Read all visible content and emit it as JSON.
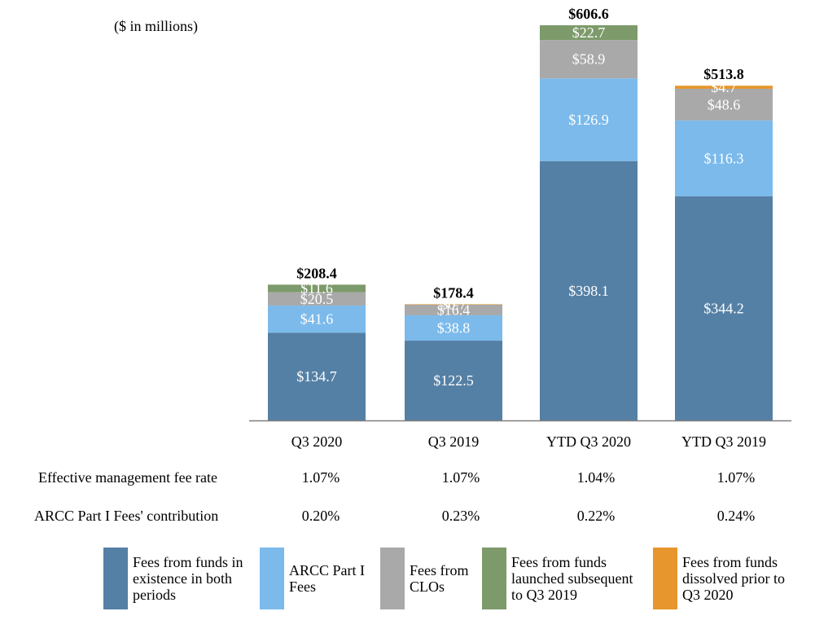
{
  "units_label": "($ in millions)",
  "colors": {
    "existing": "#5580A5",
    "arcc": "#7BBAEB",
    "clo": "#A9A9A9",
    "launched": "#7D9A6A",
    "dissolved": "#E6962C",
    "axis": "#7F7F7F"
  },
  "chart_data": {
    "type": "bar",
    "stacked": true,
    "categories": [
      "Q3 2020",
      "Q3 2019",
      "YTD Q3 2020",
      "YTD Q3 2019"
    ],
    "series": [
      {
        "key": "existing",
        "name": "Fees from funds in existence in both periods",
        "values": [
          134.7,
          122.5,
          398.1,
          344.2
        ],
        "labels": [
          "$134.7",
          "$122.5",
          "$398.1",
          "$344.2"
        ]
      },
      {
        "key": "arcc",
        "name": "ARCC Part I Fees",
        "values": [
          41.6,
          38.8,
          126.9,
          116.3
        ],
        "labels": [
          "$41.6",
          "$38.8",
          "$126.9",
          "$116.3"
        ]
      },
      {
        "key": "clo",
        "name": "Fees from CLOs",
        "values": [
          20.5,
          16.4,
          58.9,
          48.6
        ],
        "labels": [
          "$20.5",
          "$16.4",
          "$58.9",
          "$48.6"
        ]
      },
      {
        "key": "dissolved",
        "name": "Fees from funds dissolved prior to Q3 2020",
        "values": [
          0,
          0.7,
          0,
          4.7
        ],
        "labels": [
          "",
          "$0.7",
          "",
          "$4.7"
        ]
      },
      {
        "key": "launched",
        "name": "Fees from funds launched subsequent to Q3 2019",
        "values": [
          11.6,
          0,
          22.7,
          0
        ],
        "labels": [
          "$11.6",
          "",
          "$22.7",
          ""
        ]
      }
    ],
    "totals": [
      208.4,
      178.4,
      606.6,
      513.8
    ],
    "total_labels": [
      "$208.4",
      "$178.4",
      "$606.6",
      "$513.8"
    ],
    "ylim": [
      0,
      606.6
    ],
    "title": "",
    "xlabel": "",
    "ylabel": ""
  },
  "rows": [
    {
      "label": "Effective management fee rate",
      "values": [
        "1.07%",
        "1.07%",
        "1.04%",
        "1.07%"
      ]
    },
    {
      "label": "ARCC Part I Fees' contribution",
      "values": [
        "0.20%",
        "0.23%",
        "0.22%",
        "0.24%"
      ]
    }
  ],
  "legend": [
    {
      "key": "existing",
      "text": "Fees from funds in\nexistence in both\nperiods"
    },
    {
      "key": "arcc",
      "text": "ARCC Part I\nFees"
    },
    {
      "key": "clo",
      "text": "Fees from\nCLOs"
    },
    {
      "key": "launched",
      "text": "Fees from funds\nlaunched subsequent\nto Q3 2019"
    },
    {
      "key": "dissolved",
      "text": "Fees from funds\ndissolved prior to\nQ3 2020"
    }
  ]
}
